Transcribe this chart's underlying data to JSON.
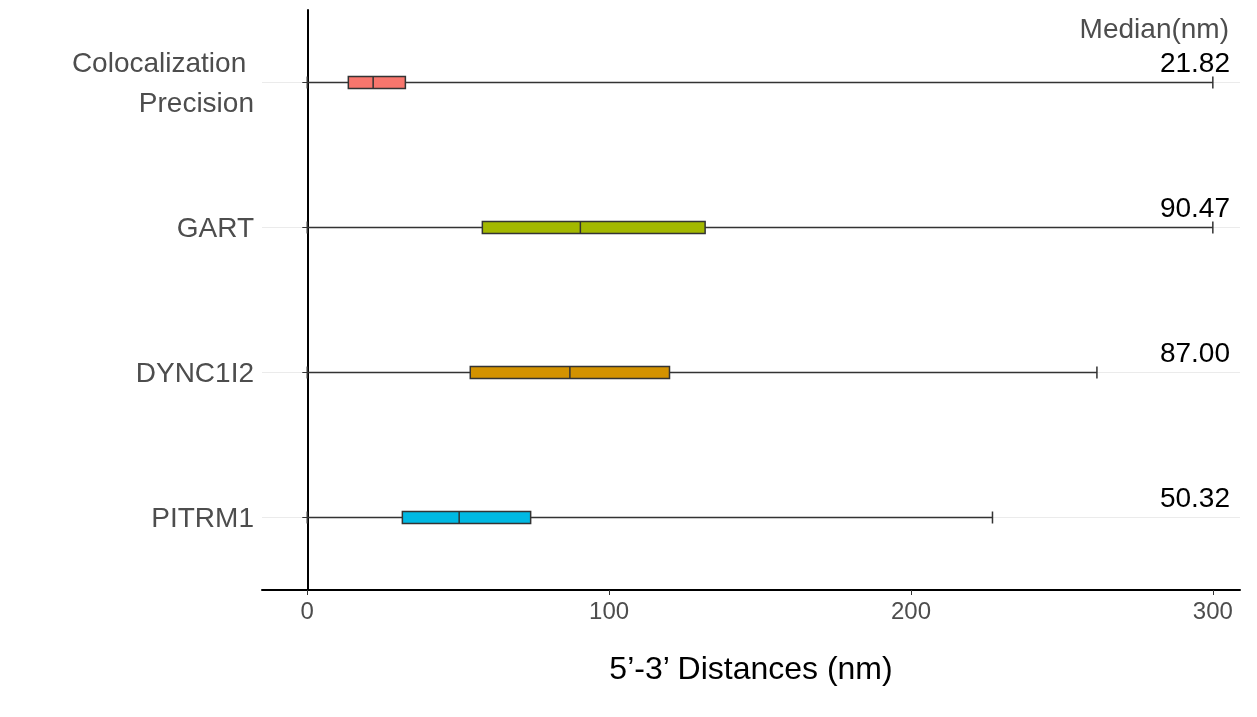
{
  "chart_data": {
    "type": "box",
    "orientation": "horizontal",
    "xlabel": "5’-3’ Distances (nm)",
    "categories": [
      "Colocalization Precision",
      "GART",
      "DYNC1I2",
      "PITRM1"
    ],
    "colors": [
      "#f8766d",
      "#a3b800",
      "#d39200",
      "#00b9e3"
    ],
    "boxes": [
      {
        "low": 0,
        "q1": 13.6,
        "median": 21.82,
        "q3": 32.5,
        "high": 300
      },
      {
        "low": 0,
        "q1": 58,
        "median": 90.47,
        "q3": 131.8,
        "high": 300
      },
      {
        "low": 0,
        "q1": 54,
        "median": 87,
        "q3": 120,
        "high": 261.6
      },
      {
        "low": 0,
        "q1": 31.5,
        "median": 50.32,
        "q3": 74,
        "high": 227
      }
    ],
    "xlim": [
      -15,
      309
    ],
    "xticks": [
      0,
      100,
      200,
      300
    ],
    "grid": "y",
    "annotations": [
      "Median(nm)",
      "21.82",
      "90.47",
      "87.00",
      "50.32"
    ]
  }
}
